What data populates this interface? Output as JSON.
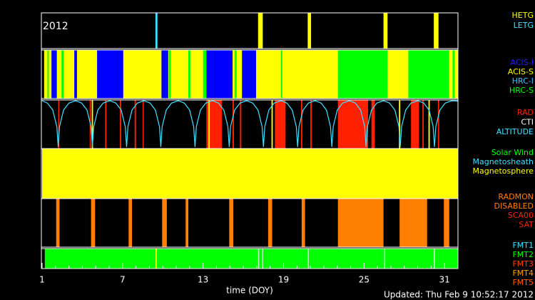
{
  "chart_data": {
    "type": "timeline",
    "year_label": "2012",
    "xlabel": "time (DOY)",
    "footer": "Updated: Thu Feb  9 10:52:17 2012",
    "xlim": [
      1,
      32
    ],
    "xticks": [
      1,
      7,
      13,
      19,
      25,
      31
    ],
    "xminorticks": [
      2,
      3,
      4,
      5,
      6,
      8,
      9,
      10,
      11,
      12,
      14,
      15,
      16,
      17,
      18,
      20,
      21,
      22,
      23,
      24,
      26,
      27,
      28,
      29,
      30,
      32
    ],
    "panels": [
      {
        "labels": [
          {
            "text": "HETG",
            "color": "#ffff00"
          },
          {
            "text": "LETG",
            "color": "#40e0ff"
          }
        ],
        "segments": [
          {
            "x": [
              9.45,
              9.6
            ],
            "color": "#40e0ff"
          },
          {
            "x": [
              17.1,
              17.45
            ],
            "color": "#ffff00"
          },
          {
            "x": [
              20.8,
              21.05
            ],
            "color": "#ffff00"
          },
          {
            "x": [
              26.45,
              26.75
            ],
            "color": "#ffff00"
          },
          {
            "x": [
              30.2,
              30.55
            ],
            "color": "#ffff00"
          }
        ]
      },
      {
        "labels": [
          {
            "text": "ACIS-I",
            "color": "#2020ff"
          },
          {
            "text": "ACIS-S",
            "color": "#ffff00"
          },
          {
            "text": "HRC-I",
            "color": "#40c0ff"
          },
          {
            "text": "HRC-S",
            "color": "#00ff00"
          }
        ],
        "segments": [
          {
            "x": [
              1.15,
              32
            ],
            "color": "#ffff00"
          },
          {
            "x": [
              1.4,
              1.5
            ],
            "color": "#00ff00"
          },
          {
            "x": [
              1.7,
              2.1
            ],
            "color": "#0000ff"
          },
          {
            "x": [
              2.45,
              2.6
            ],
            "color": "#00ff00"
          },
          {
            "x": [
              3.4,
              3.6
            ],
            "color": "#0000ff"
          },
          {
            "x": [
              5.1,
              7.05
            ],
            "color": "#0000ff"
          },
          {
            "x": [
              9.9,
              10.4
            ],
            "color": "#0000ff"
          },
          {
            "x": [
              10.45,
              10.6
            ],
            "color": "#00ff00"
          },
          {
            "x": [
              11.9,
              12.05
            ],
            "color": "#00ff00"
          },
          {
            "x": [
              13.0,
              13.25
            ],
            "color": "#00ff00"
          },
          {
            "x": [
              13.25,
              15.2
            ],
            "color": "#0000ff"
          },
          {
            "x": [
              15.35,
              15.5
            ],
            "color": "#00ff00"
          },
          {
            "x": [
              15.9,
              16.95
            ],
            "color": "#0000ff"
          },
          {
            "x": [
              18.8,
              18.9
            ],
            "color": "#00ff00"
          },
          {
            "x": [
              23.05,
              26.75
            ],
            "color": "#00ff00"
          },
          {
            "x": [
              28.3,
              31.35
            ],
            "color": "#00ff00"
          },
          {
            "x": [
              31.6,
              31.75
            ],
            "color": "#00ff00"
          }
        ]
      },
      {
        "labels": [
          {
            "text": "RAD",
            "color": "#ff2000"
          },
          {
            "text": "CTI",
            "color": "#ffffff"
          },
          {
            "text": "ALTITUDE",
            "color": "#40e0ff"
          }
        ],
        "segments": [
          {
            "x": [
              2.2,
              2.28
            ],
            "color": "#ff2000"
          },
          {
            "x": [
              4.55,
              4.62
            ],
            "color": "#ff2000"
          },
          {
            "x": [
              4.7,
              4.8
            ],
            "color": "#ffff00"
          },
          {
            "x": [
              5.7,
              5.8
            ],
            "color": "#ff2000"
          },
          {
            "x": [
              6.8,
              6.9
            ],
            "color": "#ff2000"
          },
          {
            "x": [
              7.9,
              8.0
            ],
            "color": "#ff2000"
          },
          {
            "x": [
              8.5,
              8.58
            ],
            "color": "#ff2000"
          },
          {
            "x": [
              13.25,
              14.4
            ],
            "color": "#ff2000"
          },
          {
            "x": [
              13.4,
              13.5
            ],
            "color": "#ffff00"
          },
          {
            "x": [
              15.2,
              15.3
            ],
            "color": "#ff2000"
          },
          {
            "x": [
              15.75,
              15.85
            ],
            "color": "#ff2000"
          },
          {
            "x": [
              18.1,
              18.2
            ],
            "color": "#ffff00"
          },
          {
            "x": [
              18.35,
              19.15
            ],
            "color": "#ff2000"
          },
          {
            "x": [
              20.3,
              20.4
            ],
            "color": "#ff2000"
          },
          {
            "x": [
              21.0,
              21.1
            ],
            "color": "#ff2000"
          },
          {
            "x": [
              23.05,
              25.3
            ],
            "color": "#ff2000"
          },
          {
            "x": [
              25.55,
              25.8
            ],
            "color": "#ff2000"
          },
          {
            "x": [
              27.6,
              27.7
            ],
            "color": "#ffff00"
          },
          {
            "x": [
              28.5,
              29.1
            ],
            "color": "#ff2000"
          },
          {
            "x": [
              29.35,
              29.45
            ],
            "color": "#ff2000"
          },
          {
            "x": [
              29.8,
              29.9
            ],
            "color": "#ffff00"
          },
          {
            "x": [
              30.5,
              30.6
            ],
            "color": "#ff2000"
          }
        ],
        "series": [
          {
            "color": "#40e0ff",
            "ylim": [
              0,
              100
            ],
            "x": [
              1,
              1.4,
              1.8,
              2.1,
              2.2,
              2.3,
              2.6,
              3.0,
              3.5,
              3.95,
              4.35,
              4.65,
              4.75,
              4.85,
              5.15,
              5.55,
              6.05,
              6.5,
              6.9,
              7.2,
              7.3,
              7.4,
              7.7,
              8.1,
              8.6,
              9.05,
              9.45,
              9.75,
              9.85,
              9.95,
              10.25,
              10.65,
              11.15,
              11.6,
              12.0,
              12.3,
              12.4,
              12.5,
              12.8,
              13.2,
              13.7,
              14.15,
              14.55,
              14.85,
              14.95,
              15.05,
              15.35,
              15.75,
              16.25,
              16.7,
              17.1,
              17.4,
              17.5,
              17.6,
              17.9,
              18.3,
              18.8,
              19.25,
              19.65,
              19.95,
              20.05,
              20.15,
              20.45,
              20.85,
              21.35,
              21.8,
              22.2,
              22.5,
              22.6,
              22.7,
              23.0,
              23.4,
              23.9,
              24.35,
              24.75,
              25.05,
              25.15,
              25.25,
              25.55,
              25.95,
              26.45,
              26.9,
              27.3,
              27.6,
              27.7,
              27.8,
              28.1,
              28.5,
              29.0,
              29.45,
              29.85,
              30.15,
              30.25,
              30.35,
              30.65,
              31.05,
              31.55,
              32
            ],
            "values": [
              100,
              95,
              80,
              45,
              2,
              45,
              80,
              95,
              100,
              95,
              80,
              45,
              2,
              45,
              80,
              95,
              100,
              95,
              80,
              45,
              2,
              45,
              80,
              95,
              100,
              95,
              80,
              45,
              2,
              45,
              80,
              95,
              100,
              95,
              80,
              45,
              2,
              45,
              80,
              95,
              100,
              95,
              80,
              45,
              2,
              45,
              80,
              95,
              100,
              95,
              80,
              45,
              2,
              45,
              80,
              95,
              100,
              95,
              80,
              45,
              2,
              45,
              80,
              95,
              100,
              95,
              80,
              45,
              2,
              45,
              80,
              95,
              100,
              95,
              80,
              45,
              2,
              45,
              80,
              95,
              100,
              95,
              80,
              45,
              2,
              45,
              80,
              95,
              100,
              95,
              80,
              45,
              2,
              45,
              80,
              95,
              100,
              99
            ]
          }
        ]
      },
      {
        "labels": [
          {
            "text": "Solar Wind",
            "color": "#00ff00"
          },
          {
            "text": "Magnetosheath",
            "color": "#40e0ff"
          },
          {
            "text": "Magnetosphere",
            "color": "#ffff00"
          }
        ],
        "segments": [
          {
            "x": [
              1,
              32
            ],
            "color": "#ffff00"
          }
        ]
      },
      {
        "labels": [
          {
            "text": "RADMON",
            "color": "#ff8000"
          },
          {
            "text": "DISABLED",
            "color": "#ff8000"
          },
          {
            "text": "SCA00",
            "color": "#ff2000"
          },
          {
            "text": "SAT",
            "color": "#ff2000"
          }
        ],
        "segments": [
          {
            "x": [
              2.05,
              2.3
            ],
            "color": "#ff8000"
          },
          {
            "x": [
              4.65,
              4.95
            ],
            "color": "#ff8000"
          },
          {
            "x": [
              7.45,
              7.7
            ],
            "color": "#ff8000"
          },
          {
            "x": [
              9.95,
              10.3
            ],
            "color": "#ff8000"
          },
          {
            "x": [
              11.7,
              11.9
            ],
            "color": "#ff8000"
          },
          {
            "x": [
              14.95,
              15.25
            ],
            "color": "#ff8000"
          },
          {
            "x": [
              17.85,
              18.15
            ],
            "color": "#ff8000"
          },
          {
            "x": [
              20.35,
              20.6
            ],
            "color": "#ff8000"
          },
          {
            "x": [
              23.05,
              26.45
            ],
            "color": "#ff8000"
          },
          {
            "x": [
              27.65,
              29.7
            ],
            "color": "#ff8000"
          },
          {
            "x": [
              30.95,
              31.35
            ],
            "color": "#ff8000"
          }
        ]
      },
      {
        "labels": [
          {
            "text": "FMT1",
            "color": "#40e0ff"
          },
          {
            "text": "FMT2",
            "color": "#00ff00"
          },
          {
            "text": "FMT3",
            "color": "#ff4000"
          },
          {
            "text": "FMT4",
            "color": "#ffa000"
          },
          {
            "text": "FMT5",
            "color": "#ff6000"
          }
        ],
        "segments": [
          {
            "x": [
              1.2,
              32
            ],
            "color": "#00ff00"
          },
          {
            "x": [
              9.45,
              9.55
            ],
            "color": "#ffff00"
          },
          {
            "x": [
              17.1,
              17.15
            ],
            "color": "#ccffcc"
          },
          {
            "x": [
              17.4,
              17.45
            ],
            "color": "#ccffcc"
          },
          {
            "x": [
              20.8,
              20.85
            ],
            "color": "#ccffcc"
          },
          {
            "x": [
              26.5,
              26.55
            ],
            "color": "#ccffcc"
          },
          {
            "x": [
              30.2,
              30.25
            ],
            "color": "#ccffcc"
          }
        ]
      }
    ]
  }
}
